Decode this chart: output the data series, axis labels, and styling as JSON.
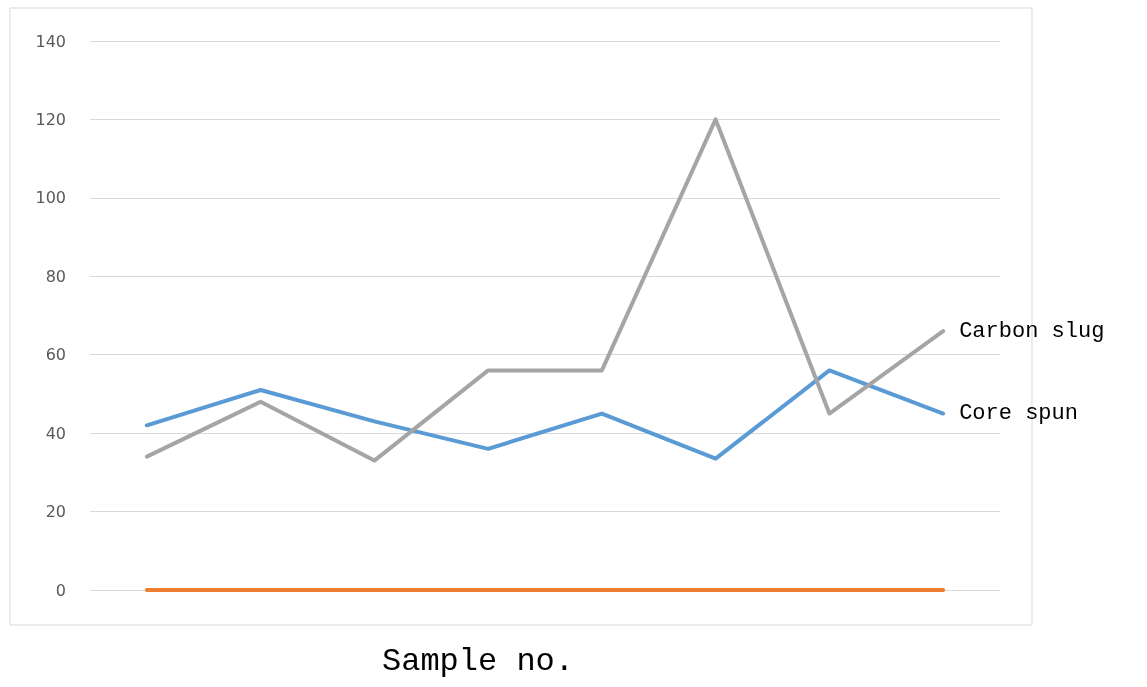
{
  "chart_data": {
    "type": "line",
    "xlabel": "Sample no.",
    "categories": [
      null,
      null,
      null,
      null,
      null,
      null,
      null,
      null
    ],
    "series": [
      {
        "name": "Core spun",
        "color": "#5b9bd5",
        "values": [
          42,
          51,
          43,
          36,
          45,
          33.5,
          56,
          45
        ]
      },
      {
        "name": "Carbon slug",
        "color": "#a5a5a5",
        "values": [
          34,
          48,
          33,
          56,
          56,
          120,
          45,
          66
        ]
      },
      {
        "color": "#ed7d31",
        "values": [
          0,
          0,
          0,
          0,
          0,
          0,
          0,
          0
        ]
      }
    ],
    "ylim": [
      0,
      140
    ],
    "yticks": [
      0,
      20,
      40,
      60,
      80,
      100,
      120,
      140
    ],
    "grid": "y",
    "legend": false,
    "marker": "none",
    "line_style": "solid"
  }
}
